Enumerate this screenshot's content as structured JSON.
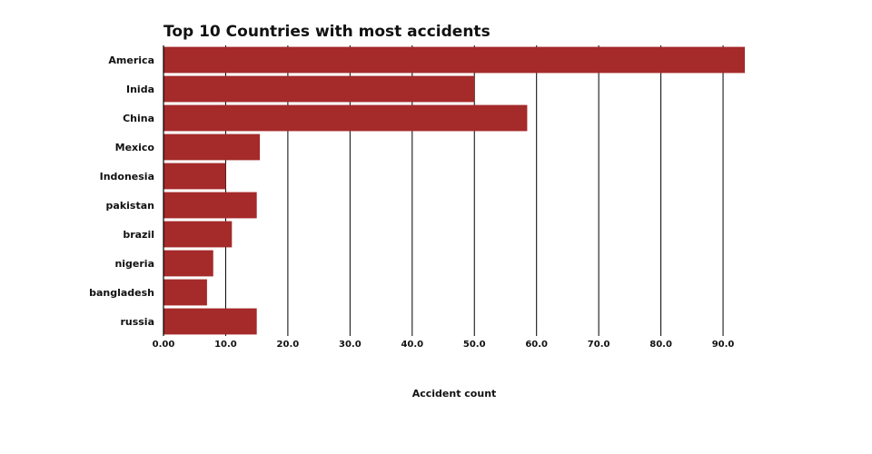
{
  "chart_data": {
    "type": "bar",
    "orientation": "horizontal",
    "title": "Top 10 Countries with most accidents",
    "xlabel": "Accident count",
    "ylabel": "",
    "categories": [
      "America",
      "Inida",
      "China",
      "Mexico",
      "Indonesia",
      "pakistan",
      "brazil",
      "nigeria",
      "bangladesh",
      "russia"
    ],
    "values": [
      93.5,
      50,
      58.5,
      15.5,
      10,
      15,
      11,
      8,
      7,
      15
    ],
    "xlim": [
      0,
      93.5
    ],
    "xticks": [
      0,
      10,
      20,
      30,
      40,
      50,
      60,
      70,
      80,
      90
    ],
    "xtick_labels": [
      "0.00",
      "10.0",
      "20.0",
      "30.0",
      "40.0",
      "50.0",
      "60.0",
      "70.0",
      "80.0",
      "90.0"
    ],
    "grid": "vertical",
    "bar_color": "#a52a2a",
    "grid_color": "#000000"
  }
}
